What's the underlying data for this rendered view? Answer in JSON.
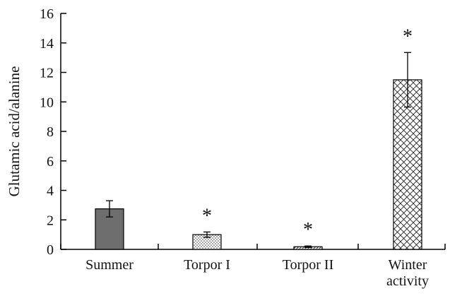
{
  "chart_data": {
    "type": "bar",
    "title": "",
    "xlabel": "",
    "ylabel": "Glutamic acid/alanine",
    "ylim": [
      0,
      16
    ],
    "yticks": [
      0,
      2,
      4,
      6,
      8,
      10,
      12,
      14,
      16
    ],
    "grid": false,
    "categories": [
      [
        "Summer"
      ],
      [
        "Torpor I"
      ],
      [
        "Torpor II"
      ],
      [
        "Winter",
        "activity"
      ]
    ],
    "values": [
      2.75,
      1.0,
      0.18,
      11.5
    ],
    "errors": [
      0.55,
      0.18,
      0.05,
      1.85
    ],
    "significance": [
      "",
      "*",
      "*",
      "*"
    ],
    "fills": [
      "solid-gray",
      "dotted",
      "hatched",
      "crosshatch"
    ],
    "colors": {
      "solid": "#6e6e6e",
      "outline": "#000000"
    }
  }
}
